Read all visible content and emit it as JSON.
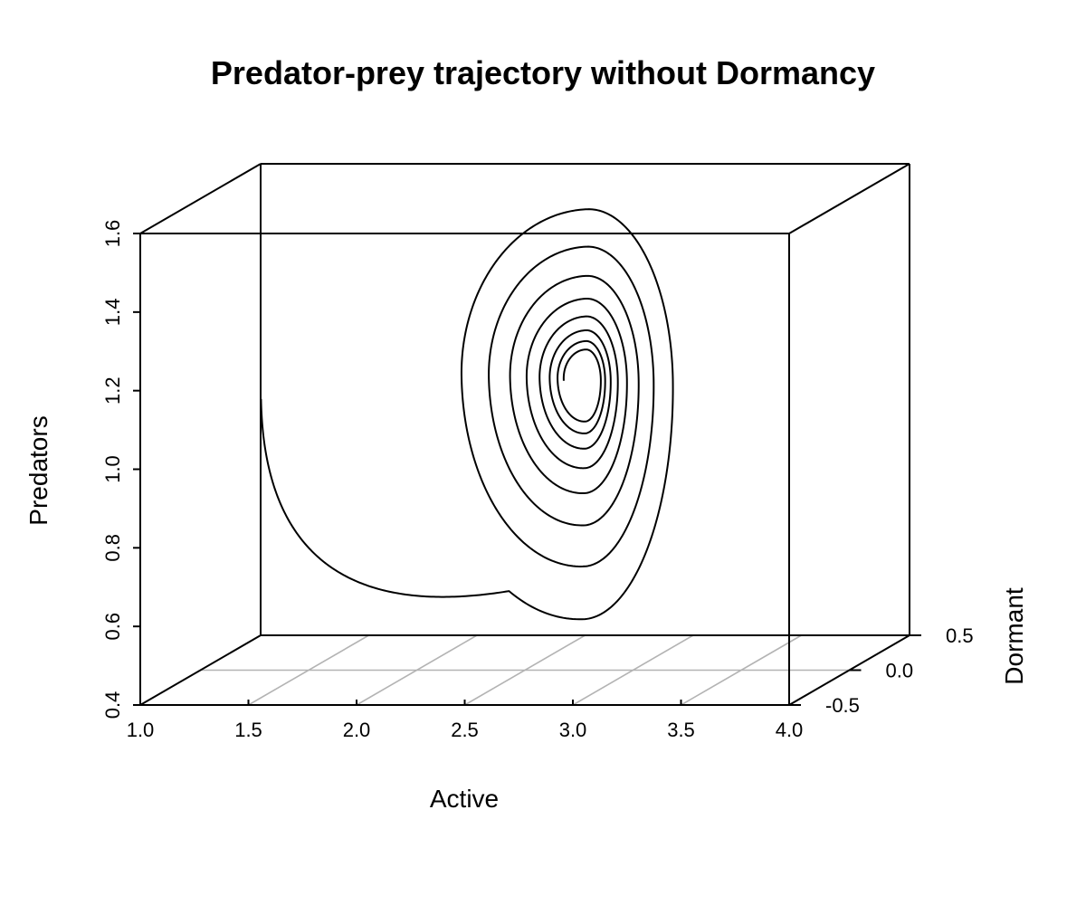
{
  "chart_data": {
    "type": "line",
    "projection": "3d-perspective-box",
    "title": "Predator-prey trajectory without Dormancy",
    "axes": {
      "x": {
        "label": "Active",
        "range": [
          1.0,
          4.0
        ],
        "ticks": [
          "1.0",
          "1.5",
          "2.0",
          "2.5",
          "3.0",
          "3.5",
          "4.0"
        ]
      },
      "y": {
        "label": "Predators",
        "range": [
          0.4,
          1.6
        ],
        "ticks": [
          "0.4",
          "0.6",
          "0.8",
          "1.0",
          "1.2",
          "1.4",
          "1.6"
        ]
      },
      "z": {
        "label": "Dormant",
        "range": [
          -0.5,
          0.5
        ],
        "ticks": [
          "-0.5",
          "0.0",
          "0.5"
        ]
      }
    },
    "floor_grid": true,
    "series": [
      {
        "description": "damped spiral converging to equilibrium",
        "start": {
          "active": 1.28,
          "predators": 1.09,
          "dormant": 0.0
        },
        "equilibrium": {
          "active": 2.78,
          "predators": 1.14,
          "dormant": 0.0
        },
        "first_extrema": {
          "active_max": 3.21,
          "predators_min": 0.53,
          "predators_max": 1.63,
          "active_min": 2.09
        },
        "damping_per_turn": 0.22,
        "turns": 8
      }
    ]
  }
}
